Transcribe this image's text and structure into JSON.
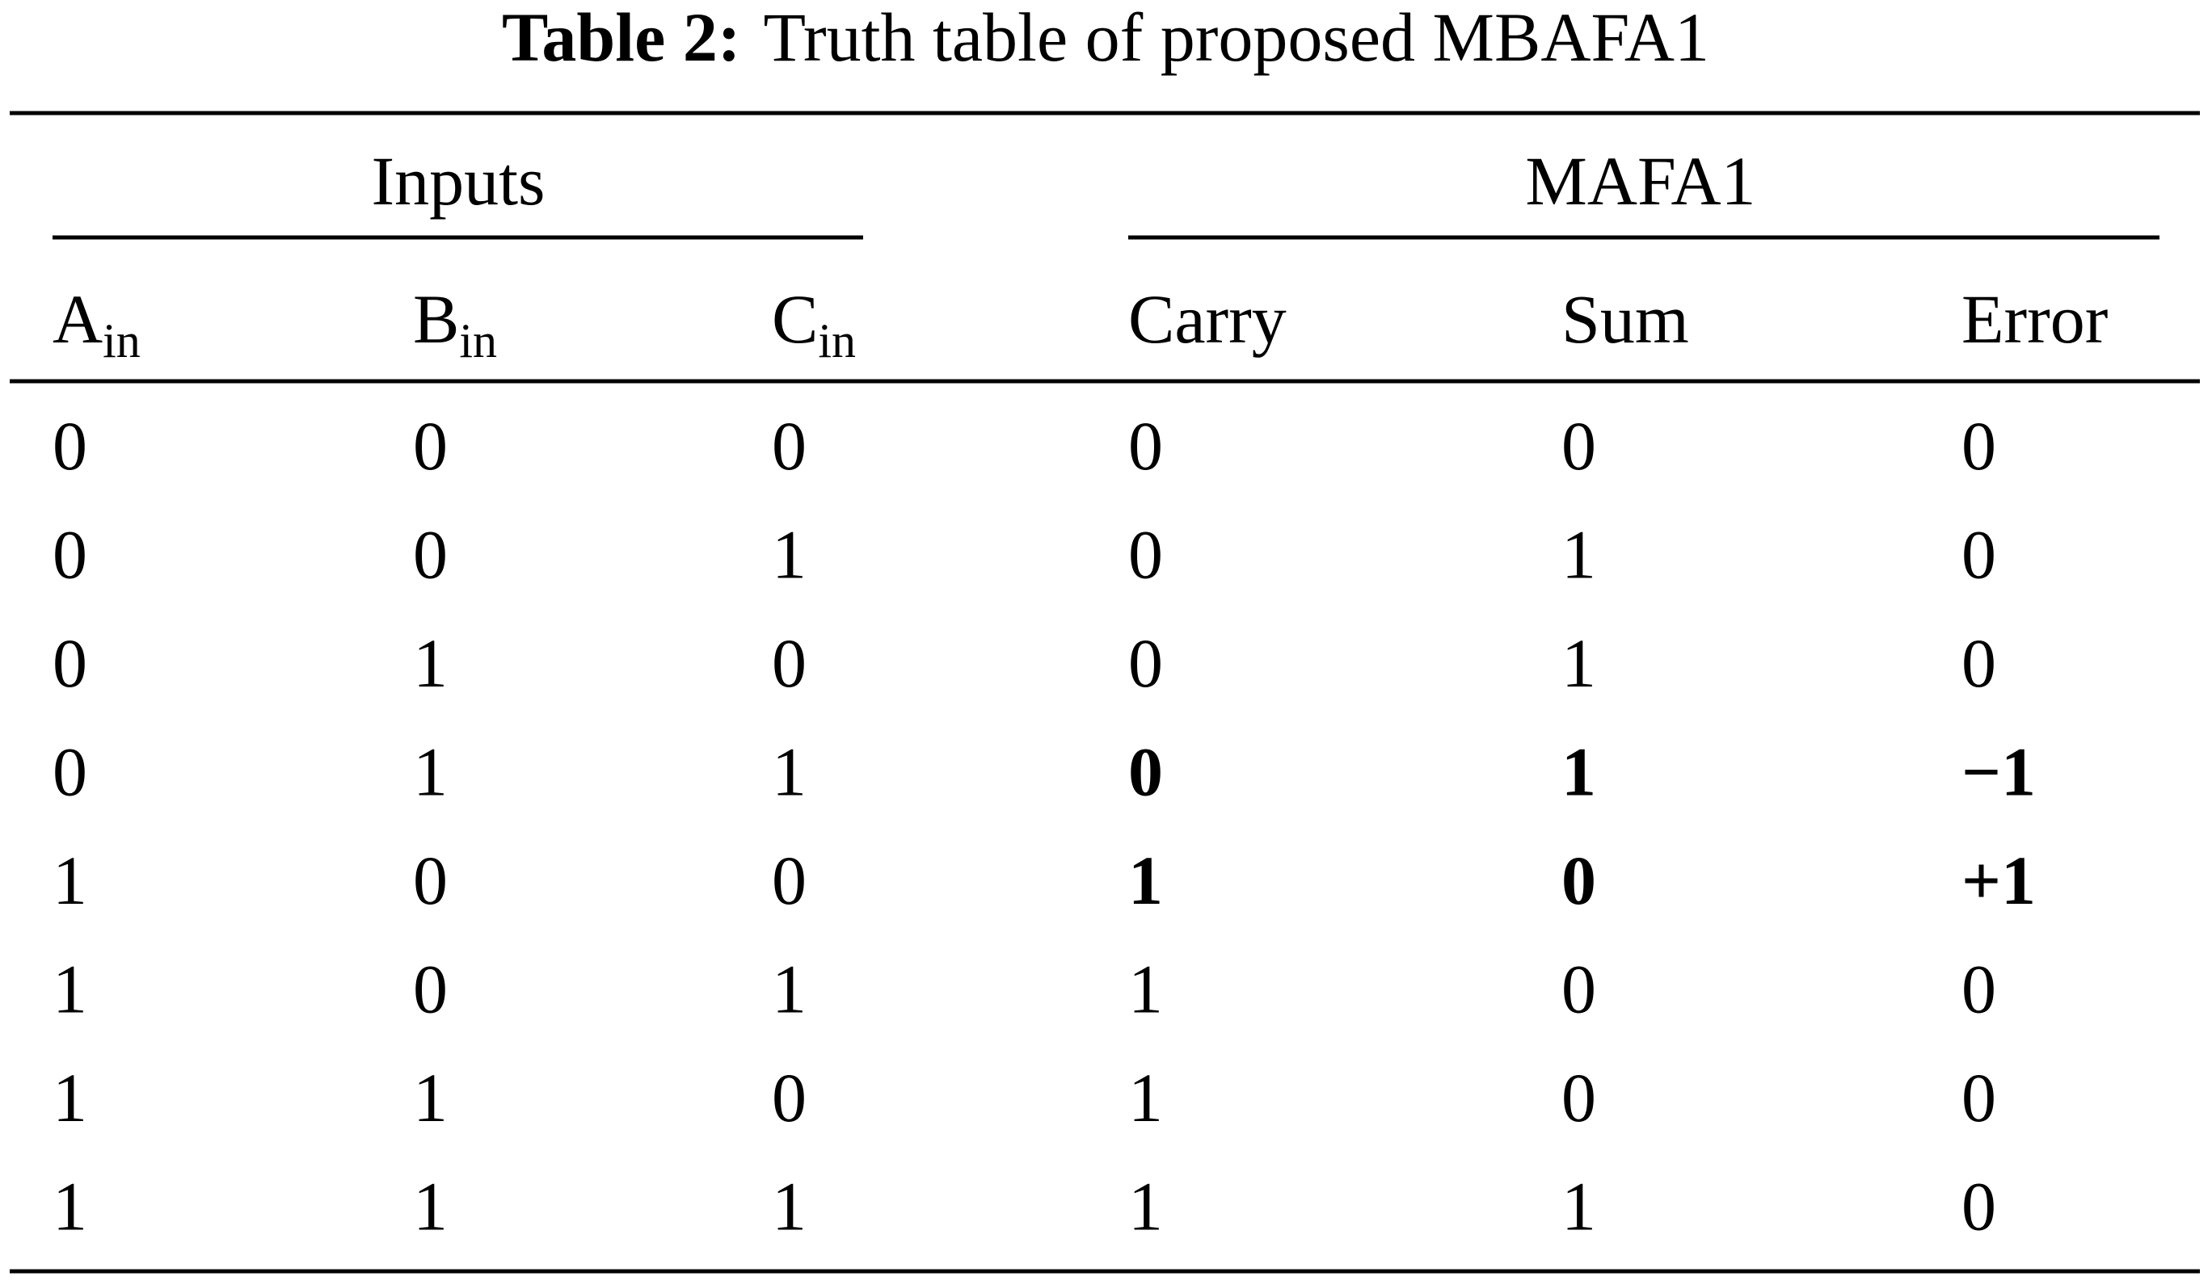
{
  "table": {
    "label": "Table 2:",
    "title": "Truth table of proposed MBAFA1",
    "groups": [
      "Inputs",
      "MAFA1"
    ],
    "columns": [
      {
        "main": "A",
        "sub": "in"
      },
      {
        "main": "B",
        "sub": "in"
      },
      {
        "main": "C",
        "sub": "in"
      },
      {
        "main": "Carry"
      },
      {
        "main": "Sum"
      },
      {
        "main": "Error"
      }
    ],
    "rows": [
      [
        "0",
        "0",
        "0",
        "0",
        "0",
        "0"
      ],
      [
        "0",
        "0",
        "1",
        "0",
        "1",
        "0"
      ],
      [
        "0",
        "1",
        "0",
        "0",
        "1",
        "0"
      ],
      [
        "0",
        "1",
        "1",
        "0",
        "1",
        "−1"
      ],
      [
        "1",
        "0",
        "0",
        "1",
        "0",
        "+1"
      ],
      [
        "1",
        "0",
        "1",
        "1",
        "0",
        "0"
      ],
      [
        "1",
        "1",
        "0",
        "1",
        "0",
        "0"
      ],
      [
        "1",
        "1",
        "1",
        "1",
        "1",
        "0"
      ]
    ],
    "bold_rows": [
      3,
      4
    ],
    "bold_columns": [
      3,
      4,
      5
    ]
  }
}
